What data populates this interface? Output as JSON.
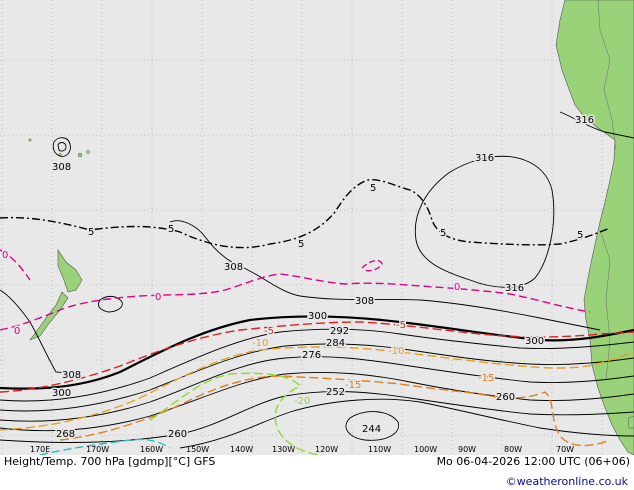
{
  "title": "Height/Temp. 700 hPa [gdmp][°C] GFS",
  "datetime": "Mo 06-04-2026 12:00 UTC (06+06)",
  "credit": "©weatheronline.co.uk",
  "colors": {
    "ocean": "#e8e8e8",
    "land": "#9ad27a",
    "height_contour": "#000000",
    "temp_0": "#e0008a",
    "temp_5": "#000000",
    "temp_minus5": "#e02020",
    "temp_minus10": "#e8a020",
    "temp_minus15": "#e08020",
    "temp_minus20": "#90d830",
    "temp_minus25": "#20c0c0"
  },
  "lon_ticks": [
    "170E",
    "170W",
    "160W",
    "150W",
    "140W",
    "130W",
    "120W",
    "110W",
    "100W",
    "90W",
    "80W",
    "70W"
  ],
  "height_labels": [
    "316",
    "316",
    "316",
    "308",
    "308",
    "308",
    "308",
    "300",
    "300",
    "300",
    "292",
    "284",
    "276",
    "268",
    "260",
    "260",
    "252",
    "244"
  ],
  "temp_labels": [
    "5",
    "5",
    "5",
    "5",
    "5",
    "5",
    "0",
    "0",
    "0",
    "0",
    "-5",
    "-5",
    "-10",
    "-10",
    "-15",
    "-15",
    "-20"
  ]
}
